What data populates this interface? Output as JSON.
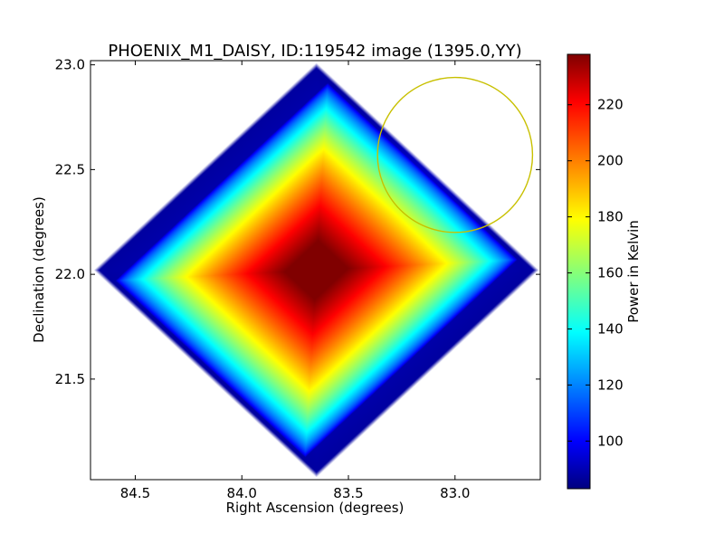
{
  "chart_data": {
    "type": "heatmap",
    "title": "PHOENIX_M1_DAISY, ID:119542 image (1395.0,YY)",
    "xlabel": "Right Ascension (degrees)",
    "ylabel": "Declination (degrees)",
    "xlim": [
      84.71,
      82.6
    ],
    "ylim": [
      21.02,
      23.02
    ],
    "x_axis_inverted": true,
    "x_ticks": [
      {
        "value": 84.5,
        "label": "84.5"
      },
      {
        "value": 84.0,
        "label": "84.0"
      },
      {
        "value": 83.5,
        "label": "83.5"
      },
      {
        "value": 83.0,
        "label": "83.0"
      }
    ],
    "y_ticks": [
      {
        "value": 21.5,
        "label": "21.5"
      },
      {
        "value": 22.0,
        "label": "22.0"
      },
      {
        "value": 22.5,
        "label": "22.5"
      },
      {
        "value": 23.0,
        "label": "23.0"
      }
    ],
    "colormap": "jet",
    "colorbar": {
      "label": "Power in Kelvin",
      "range": [
        83,
        238
      ],
      "ticks": [
        {
          "value": 100,
          "label": "100"
        },
        {
          "value": 120,
          "label": "120"
        },
        {
          "value": 140,
          "label": "140"
        },
        {
          "value": 160,
          "label": "160"
        },
        {
          "value": 180,
          "label": "180"
        },
        {
          "value": 200,
          "label": "200"
        },
        {
          "value": 220,
          "label": "220"
        }
      ]
    },
    "map": {
      "shape": "rotated square (diamond) footprint",
      "center": {
        "ra": 83.65,
        "dec": 22.02
      },
      "corners": {
        "top": {
          "ra": 83.65,
          "dec": 23.0
        },
        "bottom": {
          "ra": 83.65,
          "dec": 21.02
        },
        "left": {
          "ra": 84.69,
          "dec": 22.02
        },
        "right": {
          "ra": 82.6,
          "dec": 22.02
        }
      },
      "peak_value": 238,
      "background_value": 83
    },
    "overlay_circle": {
      "center": {
        "ra": 83.0,
        "dec": 22.57
      },
      "radius_dec_deg": 0.37,
      "color": "#c8c000"
    },
    "grid": false
  }
}
